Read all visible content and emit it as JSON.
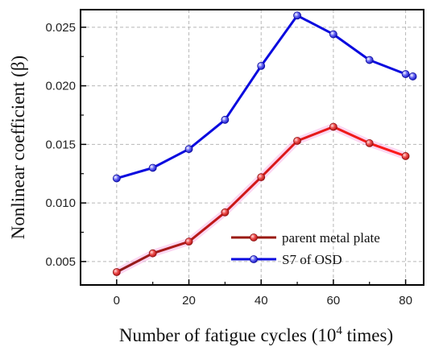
{
  "chart_data": {
    "type": "line",
    "title": "",
    "xlabel_main": "Number of fatigue cycles (10",
    "xlabel_sup": "4",
    "xlabel_tail": " times)",
    "ylabel": "Nonlinear coefficient (β)",
    "xlim": [
      -10,
      85
    ],
    "ylim": [
      0.003,
      0.0265
    ],
    "x_ticks": [
      0,
      20,
      40,
      60,
      80
    ],
    "y_ticks": [
      0.005,
      0.01,
      0.015,
      0.02,
      0.025
    ],
    "y_tick_labels": [
      "0.005",
      "0.010",
      "0.015",
      "0.020",
      "0.025"
    ],
    "grid": true,
    "legend_position": "lower-right",
    "series": [
      {
        "name": "parent metal plate",
        "color_start": "#8b1a1a",
        "color_end": "#ff1a1a",
        "marker_color": "#e23b3b",
        "x": [
          0,
          10,
          20,
          30,
          40,
          50,
          60,
          70,
          80
        ],
        "values": [
          0.0041,
          0.0057,
          0.0067,
          0.0092,
          0.0122,
          0.0153,
          0.0165,
          0.0151,
          0.014
        ]
      },
      {
        "name": "S7 of OSD",
        "color": "#0a0adf",
        "marker_color": "#4a4af0",
        "x": [
          0,
          10,
          20,
          30,
          40,
          50,
          60,
          70,
          80,
          82
        ],
        "values": [
          0.0121,
          0.013,
          0.0146,
          0.0171,
          0.0217,
          0.026,
          0.0244,
          0.0222,
          0.021,
          0.0208
        ]
      }
    ]
  }
}
